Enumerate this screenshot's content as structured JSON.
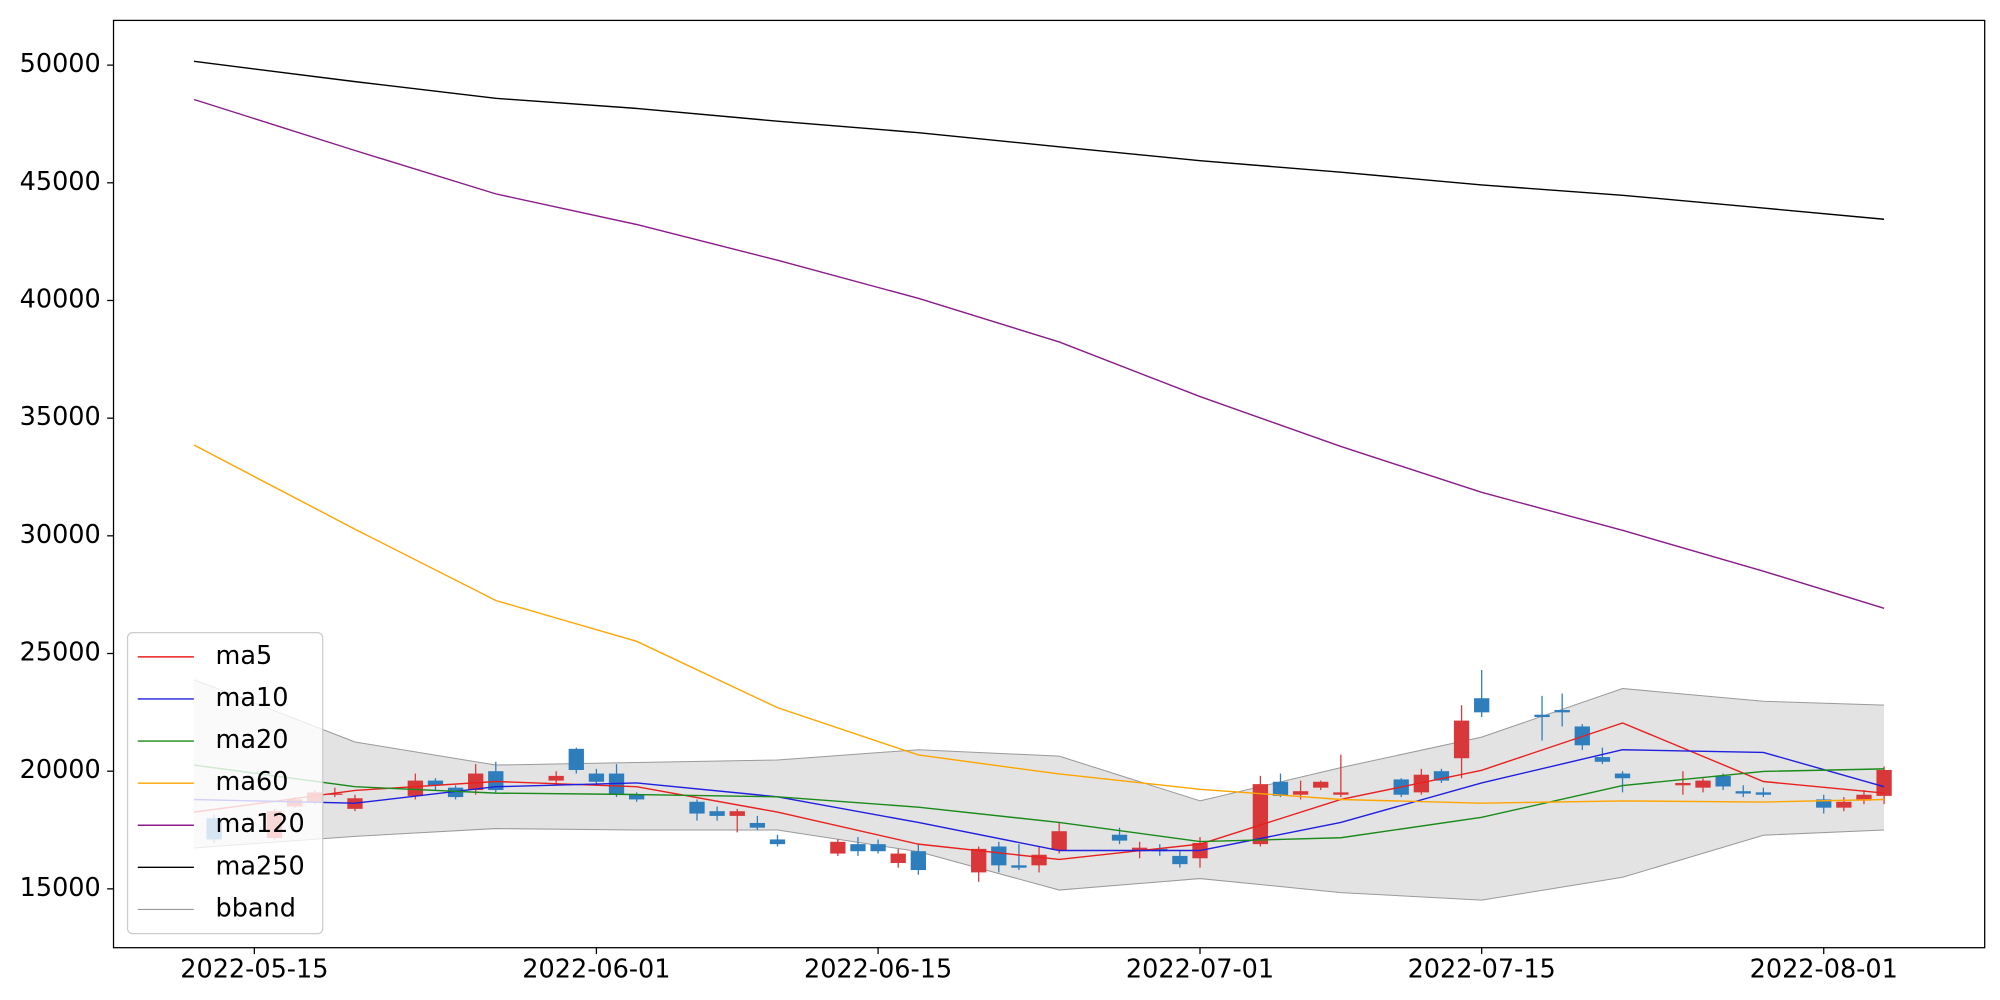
{
  "chart_data": {
    "type": "candlestick",
    "x": [
      "2022-05-13",
      "2022-05-16",
      "2022-05-17",
      "2022-05-18",
      "2022-05-19",
      "2022-05-20",
      "2022-05-23",
      "2022-05-24",
      "2022-05-25",
      "2022-05-26",
      "2022-05-27",
      "2022-05-30",
      "2022-05-31",
      "2022-06-01",
      "2022-06-02",
      "2022-06-03",
      "2022-06-06",
      "2022-06-07",
      "2022-06-08",
      "2022-06-09",
      "2022-06-10",
      "2022-06-13",
      "2022-06-14",
      "2022-06-15",
      "2022-06-16",
      "2022-06-17",
      "2022-06-20",
      "2022-06-21",
      "2022-06-22",
      "2022-06-23",
      "2022-06-24",
      "2022-06-27",
      "2022-06-28",
      "2022-06-29",
      "2022-06-30",
      "2022-07-01",
      "2022-07-04",
      "2022-07-05",
      "2022-07-06",
      "2022-07-07",
      "2022-07-08",
      "2022-07-11",
      "2022-07-12",
      "2022-07-13",
      "2022-07-14",
      "2022-07-15",
      "2022-07-18",
      "2022-07-19",
      "2022-07-20",
      "2022-07-21",
      "2022-07-22",
      "2022-07-25",
      "2022-07-26",
      "2022-07-27",
      "2022-07-28",
      "2022-07-29",
      "2022-08-01",
      "2022-08-02",
      "2022-08-03",
      "2022-08-04"
    ],
    "open": [
      18000,
      17160,
      18500,
      18700,
      19000,
      18400,
      18950,
      19600,
      19300,
      19200,
      20000,
      19600,
      20950,
      19900,
      19900,
      19000,
      18700,
      18300,
      18100,
      17800,
      17100,
      16500,
      16900,
      16900,
      16100,
      16600,
      15700,
      16800,
      16000,
      16000,
      16650,
      17300,
      16600,
      16700,
      16400,
      16300,
      16900,
      19550,
      19000,
      19300,
      19000,
      19650,
      19100,
      20000,
      20550,
      23100,
      22400,
      22600,
      21900,
      20600,
      19900,
      19400,
      19300,
      19800,
      19150,
      19100,
      18800,
      18450,
      18750,
      18950
    ],
    "high": [
      18150,
      18400,
      18900,
      19200,
      19300,
      19000,
      19900,
      19700,
      19400,
      20300,
      20400,
      20000,
      21000,
      20100,
      20300,
      19100,
      18800,
      18500,
      18400,
      18100,
      17300,
      17100,
      17200,
      17100,
      16700,
      16900,
      16800,
      17000,
      16900,
      16800,
      17800,
      17600,
      17000,
      16900,
      16600,
      17200,
      19800,
      19900,
      19600,
      19600,
      20700,
      19700,
      20100,
      20100,
      22800,
      24300,
      23200,
      23300,
      22000,
      21000,
      20000,
      20000,
      19700,
      19900,
      19400,
      19300,
      19000,
      18900,
      19200,
      20200
    ],
    "low": [
      16950,
      17100,
      18450,
      18600,
      18900,
      18300,
      18800,
      19200,
      18800,
      19000,
      19100,
      19400,
      19900,
      19400,
      18900,
      18700,
      17900,
      17900,
      17400,
      17500,
      16800,
      16400,
      16400,
      16500,
      15900,
      15600,
      15300,
      15700,
      15800,
      15700,
      16500,
      16900,
      16300,
      16400,
      15900,
      15900,
      16800,
      18900,
      18800,
      19200,
      18900,
      18900,
      19000,
      19500,
      19700,
      22300,
      21300,
      21900,
      20900,
      20300,
      19100,
      19000,
      19100,
      19200,
      18900,
      18900,
      18200,
      18300,
      18600,
      18600
    ],
    "close": [
      17100,
      18300,
      18800,
      19100,
      19050,
      18850,
      19600,
      19400,
      18900,
      19900,
      19200,
      19800,
      20050,
      19550,
      19000,
      18800,
      18200,
      18100,
      18300,
      17600,
      16900,
      17000,
      16600,
      16600,
      16500,
      15800,
      16700,
      16000,
      15900,
      16450,
      17450,
      17050,
      16750,
      16600,
      16050,
      16950,
      19450,
      18950,
      19150,
      19550,
      19100,
      19000,
      19850,
      19600,
      22150,
      22500,
      22300,
      22500,
      21100,
      20400,
      19700,
      19500,
      19600,
      19350,
      19050,
      19000,
      18450,
      18700,
      19000,
      20050
    ],
    "up_color": "#d9383a",
    "down_color": "#2e7dbd",
    "lines": {
      "x": [
        "2022-05-12",
        "2022-05-20",
        "2022-05-27",
        "2022-06-03",
        "2022-06-10",
        "2022-06-17",
        "2022-06-24",
        "2022-07-01",
        "2022-07-08",
        "2022-07-15",
        "2022-07-22",
        "2022-07-29",
        "2022-08-04"
      ],
      "series": [
        {
          "name": "ma5",
          "color": "#e8211e",
          "values": [
            18260,
            19180,
            19560,
            19340,
            18260,
            16900,
            16250,
            16900,
            18800,
            20040,
            22050,
            19560,
            19070
          ]
        },
        {
          "name": "ma10",
          "color": "#1f1fe0",
          "values": [
            18800,
            18640,
            19340,
            19500,
            18910,
            17820,
            16630,
            16630,
            17820,
            19500,
            20910,
            20800,
            19340
          ]
        },
        {
          "name": "ma20",
          "color": "#1a8a1a",
          "values": [
            20260,
            19340,
            19070,
            19010,
            18910,
            18470,
            17820,
            17010,
            17170,
            18040,
            19390,
            19990,
            20100
          ]
        },
        {
          "name": "ma60",
          "color": "#ffa500",
          "values": [
            33860,
            30280,
            27250,
            25520,
            22700,
            20690,
            19880,
            19230,
            18800,
            18640,
            18740,
            18690,
            18800
          ]
        },
        {
          "name": "ma120",
          "color": "#8b1a8b",
          "values": [
            48540,
            46370,
            44530,
            43230,
            41710,
            40090,
            38240,
            35920,
            33800,
            31850,
            30230,
            28500,
            26920
          ]
        },
        {
          "name": "ma250",
          "color": "#000000",
          "values": [
            50160,
            49300,
            48590,
            48160,
            47620,
            47130,
            46530,
            45940,
            45450,
            44910,
            44470,
            43930,
            43450
          ]
        },
        {
          "name": "bband",
          "color": "#9a9a9a",
          "fill": "#e3e3e3",
          "upper": [
            23890,
            21240,
            20260,
            20370,
            20480,
            20910,
            20640,
            18740,
            20150,
            21450,
            23510,
            22970,
            22810
          ],
          "lower": [
            16740,
            17230,
            17560,
            17500,
            17500,
            16580,
            14950,
            15440,
            14840,
            14520,
            15490,
            17280,
            17500
          ]
        }
      ]
    },
    "xlim": [
      "2022-05-08",
      "2022-08-09"
    ],
    "xticks": [
      "2022-05-15",
      "2022-06-01",
      "2022-06-15",
      "2022-07-01",
      "2022-07-15",
      "2022-08-01"
    ],
    "ylim": [
      12500,
      51900
    ],
    "yticks": [
      15000,
      20000,
      25000,
      30000,
      35000,
      40000,
      45000,
      50000
    ],
    "legend": "lower left"
  }
}
